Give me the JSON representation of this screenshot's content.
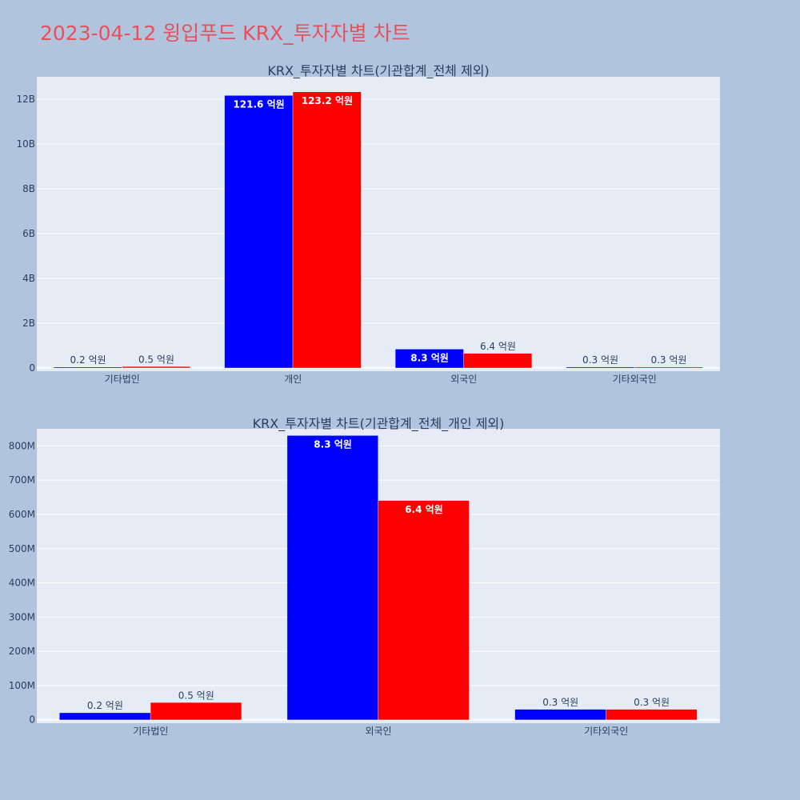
{
  "page_title": "2023-04-12 윙입푸드 KRX_투자자별 차트",
  "colors": {
    "buy": "#0000ff",
    "sell": "#ff0000",
    "plot_bg": "#e5ecf6",
    "grid": "#ffffff"
  },
  "chart_data": [
    {
      "type": "bar",
      "title": "KRX_투자자별 차트(기관합계_전체 제외)",
      "categories": [
        "기타법인",
        "개인",
        "외국인",
        "기타외국인"
      ],
      "series": [
        {
          "values": [
            20000000,
            12160000000,
            830000000,
            30000000
          ],
          "labels": [
            "0.2 억원",
            "121.6 억원",
            "8.3 억원",
            "0.3 억원"
          ]
        },
        {
          "values": [
            50000000,
            12320000000,
            640000000,
            30000000
          ],
          "labels": [
            "0.5 억원",
            "123.2 억원",
            "6.4 억원",
            "0.3 억원"
          ]
        }
      ],
      "ylim": [
        -150000000,
        13000000000
      ],
      "yticks": [
        0,
        2000000000,
        4000000000,
        6000000000,
        8000000000,
        10000000000,
        12000000000
      ],
      "ytick_labels": [
        "0",
        "2B",
        "4B",
        "6B",
        "8B",
        "10B",
        "12B"
      ],
      "grid": true
    },
    {
      "type": "bar",
      "title": "KRX_투자자별 차트(기관합계_전체_개인 제외)",
      "categories": [
        "기타법인",
        "외국인",
        "기타외국인"
      ],
      "series": [
        {
          "values": [
            20000000,
            830000000,
            30000000
          ],
          "labels": [
            "0.2 억원",
            "8.3 억원",
            "0.3 억원"
          ]
        },
        {
          "values": [
            50000000,
            640000000,
            30000000
          ],
          "labels": [
            "0.5 억원",
            "6.4 억원",
            "0.3 억원"
          ]
        }
      ],
      "ylim": [
        -10000000,
        850000000
      ],
      "yticks": [
        0,
        100000000,
        200000000,
        300000000,
        400000000,
        500000000,
        600000000,
        700000000,
        800000000
      ],
      "ytick_labels": [
        "0",
        "100M",
        "200M",
        "300M",
        "400M",
        "500M",
        "600M",
        "700M",
        "800M"
      ],
      "grid": true
    }
  ]
}
